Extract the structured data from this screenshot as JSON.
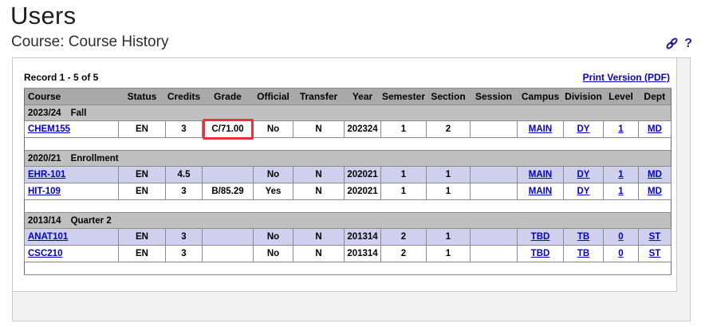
{
  "page": {
    "title": "Users",
    "subtitle": "Course: Course History"
  },
  "toolbar": {
    "permalink_icon": "chain-link-icon",
    "help_label": "?"
  },
  "panel": {
    "record_count": "Record 1 - 5 of 5",
    "print_link": "Print Version (PDF)"
  },
  "table": {
    "columns": [
      "Course",
      "Status",
      "Credits",
      "Grade",
      "Official",
      "Transfer",
      "Year",
      "Semester",
      "Section",
      "Session",
      "Campus",
      "Division",
      "Level",
      "Dept"
    ],
    "groups": [
      {
        "year_range": "2023/24",
        "term": "Fall",
        "rows": [
          {
            "course": "CHEM155",
            "status": "EN",
            "credits": "3",
            "grade": "C/71.00",
            "grade_highlight": true,
            "official": "No",
            "transfer": "N",
            "year": "202324",
            "semester": "1",
            "section": "2",
            "session": "",
            "campus": "MAIN",
            "division": "DY",
            "level": "1",
            "dept": "MD",
            "shade": false
          }
        ]
      },
      {
        "year_range": "2020/21",
        "term": "Enrollment",
        "rows": [
          {
            "course": "EHR-101",
            "status": "EN",
            "credits": "4.5",
            "grade": "",
            "grade_highlight": false,
            "official": "No",
            "transfer": "N",
            "year": "202021",
            "semester": "1",
            "section": "1",
            "session": "",
            "campus": "MAIN",
            "division": "DY",
            "level": "1",
            "dept": "MD",
            "shade": true
          },
          {
            "course": "HIT-109",
            "status": "EN",
            "credits": "3",
            "grade": "B/85.29",
            "grade_highlight": false,
            "official": "Yes",
            "transfer": "N",
            "year": "202021",
            "semester": "1",
            "section": "1",
            "session": "",
            "campus": "MAIN",
            "division": "DY",
            "level": "1",
            "dept": "MD",
            "shade": false
          }
        ]
      },
      {
        "year_range": "2013/14",
        "term": "Quarter 2",
        "rows": [
          {
            "course": "ANAT101",
            "status": "EN",
            "credits": "3",
            "grade": "",
            "grade_highlight": false,
            "official": "No",
            "transfer": "N",
            "year": "201314",
            "semester": "2",
            "section": "1",
            "session": "",
            "campus": "TBD",
            "division": "TB",
            "level": "0",
            "dept": "ST",
            "shade": true
          },
          {
            "course": "CSC210",
            "status": "EN",
            "credits": "3",
            "grade": "",
            "grade_highlight": false,
            "official": "No",
            "transfer": "N",
            "year": "201314",
            "semester": "2",
            "section": "1",
            "session": "",
            "campus": "TBD",
            "division": "TB",
            "level": "0",
            "dept": "ST",
            "shade": false
          }
        ]
      }
    ]
  },
  "colors": {
    "link": "#0000cc",
    "icon": "#22229a",
    "highlight": "#e8323e",
    "header_bg": "#a9a9a9",
    "group_bg": "#c0c0c0",
    "shade_bg": "#cfcfee"
  }
}
